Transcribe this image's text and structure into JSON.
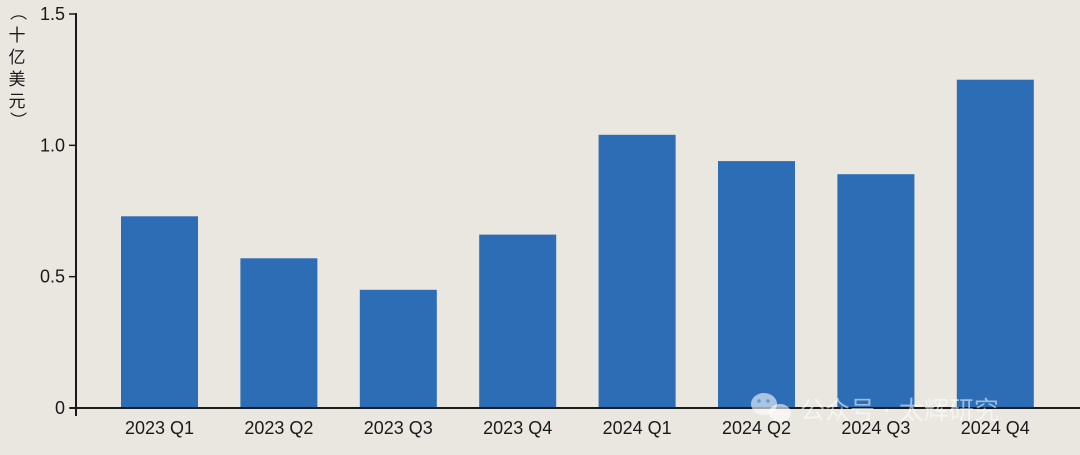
{
  "chart_data": {
    "type": "bar",
    "categories": [
      "2023 Q1",
      "2023 Q2",
      "2023 Q3",
      "2023 Q4",
      "2024 Q1",
      "2024 Q2",
      "2024 Q3",
      "2024 Q4"
    ],
    "values": [
      0.73,
      0.57,
      0.45,
      0.66,
      1.04,
      0.94,
      0.89,
      1.25
    ],
    "title": "",
    "xlabel": "",
    "ylabel": "（十亿美元）",
    "ylim": [
      0,
      1.5
    ],
    "yticks": [
      "0",
      "0.5",
      "1.0",
      "1.5"
    ],
    "ytick_values": [
      0,
      0.5,
      1.0,
      1.5
    ],
    "grid": false,
    "legend": "none",
    "bar_color": "#2c6db5",
    "background_color": "#e9e7e0"
  },
  "watermark": {
    "text": "公众号 · 太辉研究",
    "icon": "wechat-icon"
  }
}
